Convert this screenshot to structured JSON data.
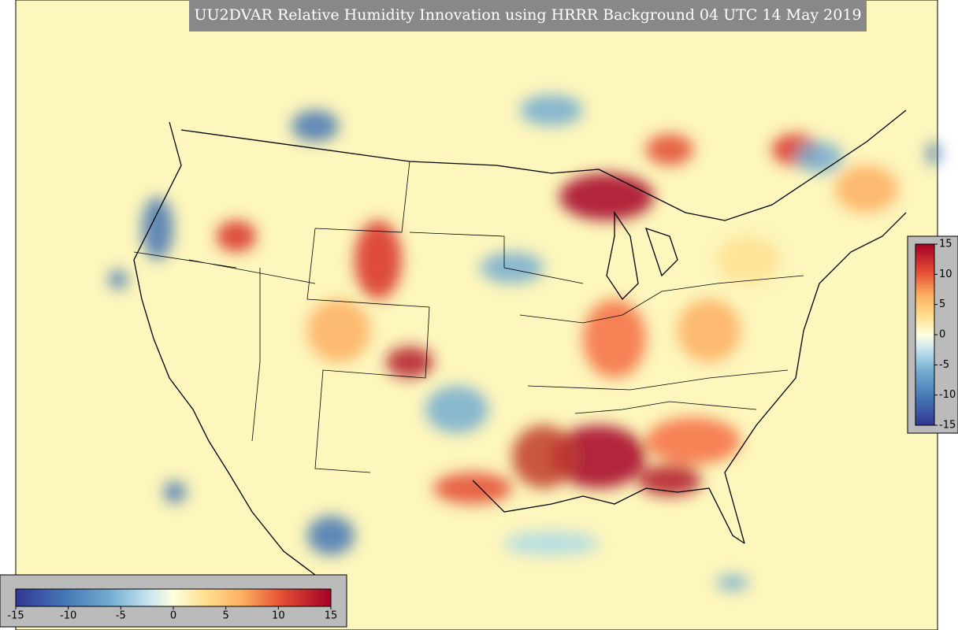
{
  "title": "UU2DVAR Relative Humidity Innovation using HRRR Background 04 UTC 14 May 2019",
  "colorbar_horizontal": {
    "lim": [
      -15,
      15
    ],
    "ticks": [
      -15,
      -10,
      -5,
      0,
      5,
      10,
      15
    ]
  },
  "colorbar_vertical": {
    "lim": [
      -15,
      15
    ],
    "ticks": [
      -15,
      -10,
      -5,
      0,
      5,
      10,
      15
    ]
  }
}
